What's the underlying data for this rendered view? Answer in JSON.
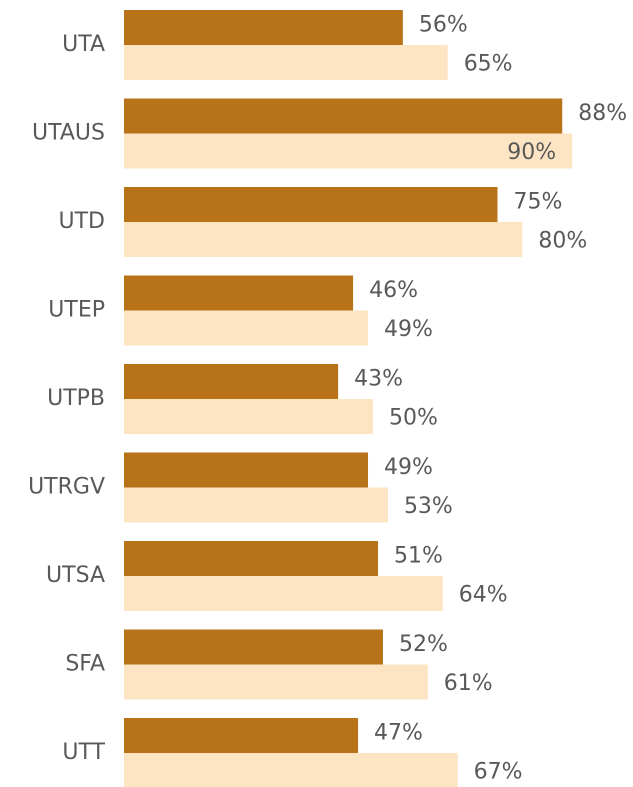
{
  "chart_data": {
    "type": "bar",
    "categories": [
      "UTA",
      "UTAUS",
      "UTD",
      "UTEP",
      "UTPB",
      "UTRGV",
      "UTSA",
      "SFA",
      "UTT"
    ],
    "series": [
      {
        "color": "#b87318",
        "values": [
          56,
          88,
          75,
          46,
          43,
          49,
          51,
          52,
          47
        ],
        "value_labels": [
          "56%",
          "88%",
          "75%",
          "46%",
          "43%",
          "49%",
          "51%",
          "52%",
          "47%"
        ]
      },
      {
        "color": "#fde5c4",
        "values": [
          65,
          90,
          80,
          49,
          50,
          53,
          64,
          61,
          67
        ],
        "value_labels": [
          "65%",
          "90%",
          "80%",
          "49%",
          "50%",
          "53%",
          "64%",
          "61%",
          "67%"
        ]
      }
    ]
  }
}
